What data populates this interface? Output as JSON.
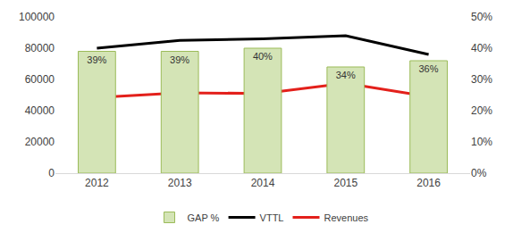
{
  "chart_data": {
    "type": "bar",
    "categories": [
      "2012",
      "2013",
      "2014",
      "2015",
      "2016"
    ],
    "series": [
      {
        "name": "GAP %",
        "type": "bar",
        "axis": "y2",
        "color": "#d4e4b6",
        "values": [
          39,
          39,
          40,
          34,
          36
        ],
        "value_labels": [
          "39%",
          "39%",
          "40%",
          "34%",
          "36%"
        ]
      },
      {
        "name": "VTTL",
        "type": "line",
        "color": "#000000",
        "values": [
          80000,
          85000,
          86000,
          88000,
          76000
        ]
      },
      {
        "name": "Revenues",
        "type": "line",
        "color": "#e3201b",
        "values": [
          48500,
          51500,
          51000,
          57500,
          49000
        ]
      }
    ],
    "ylim": [
      0,
      100000
    ],
    "yticks": [
      0,
      20000,
      40000,
      60000,
      80000,
      100000
    ],
    "y2lim": [
      0,
      50
    ],
    "y2ticks": [
      {
        "value": 0,
        "label": "0%"
      },
      {
        "value": 10,
        "label": "10%"
      },
      {
        "value": 20,
        "label": "20%"
      },
      {
        "value": 30,
        "label": "30%"
      },
      {
        "value": 40,
        "label": "40%"
      },
      {
        "value": 50,
        "label": "50%"
      }
    ],
    "data_labels": true,
    "grid": false,
    "legend": "bottom"
  }
}
